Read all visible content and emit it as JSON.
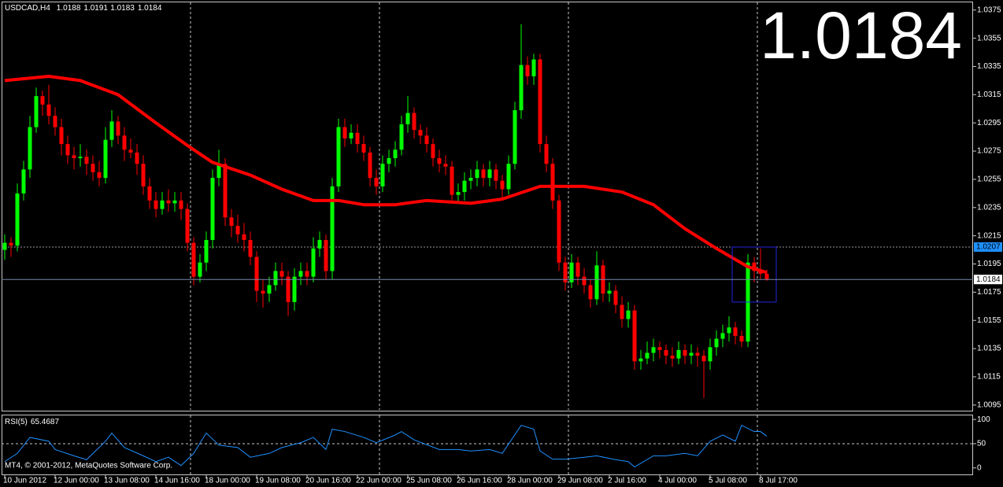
{
  "header": {
    "symbol": "USDCAD,H4"
  },
  "footer": "MT4, © 2001-2012, MetaQuotes Software Corp.",
  "chart_data": [
    {
      "type": "candlestick",
      "categories": [
        "10 Jun 2012",
        null,
        null,
        null,
        null,
        null,
        null,
        null,
        "12 Jun 00:00",
        null,
        null,
        null,
        null,
        null,
        null,
        null,
        "13 Jun 08:00",
        null,
        null,
        null,
        null,
        null,
        null,
        null,
        "14 Jun 16:00",
        null,
        null,
        null,
        null,
        null,
        null,
        null,
        "18 Jun 00:00",
        null,
        null,
        null,
        null,
        null,
        null,
        null,
        "19 Jun 08:00",
        null,
        null,
        null,
        null,
        null,
        null,
        null,
        "20 Jun 16:00",
        null,
        null,
        null,
        null,
        null,
        null,
        null,
        "22 Jun 00:00",
        null,
        null,
        null,
        null,
        null,
        null,
        null,
        "25 Jun 08:00",
        null,
        null,
        null,
        null,
        null,
        null,
        null,
        "26 Jun 16:00",
        null,
        null,
        null,
        null,
        null,
        null,
        null,
        "28 Jun 00:00",
        null,
        null,
        null,
        null,
        null,
        null,
        null,
        "29 Jun 08:00",
        null,
        null,
        null,
        null,
        null,
        null,
        null,
        "2 Jul 16:00",
        null,
        null,
        null,
        null,
        null,
        null,
        null,
        "4 Jul 00:00",
        null,
        null,
        null,
        null,
        null,
        null,
        null,
        "5 Jul 08:00",
        null,
        null,
        null,
        null,
        null,
        null,
        null,
        "8 Jul 17:00",
        null
      ],
      "ohlc": [
        [
          1.0205,
          1.0216,
          1.0198,
          1.021
        ],
        [
          1.021,
          1.0214,
          1.02,
          1.0208
        ],
        [
          1.0208,
          1.0252,
          1.0204,
          1.0245
        ],
        [
          1.0245,
          1.0268,
          1.024,
          1.0262
        ],
        [
          1.0262,
          1.03,
          1.0256,
          1.0292
        ],
        [
          1.0292,
          1.032,
          1.0288,
          1.0314
        ],
        [
          1.0314,
          1.0318,
          1.03,
          1.0308
        ],
        [
          1.0308,
          1.0322,
          1.0294,
          1.03
        ],
        [
          1.03,
          1.0306,
          1.0286,
          1.0292
        ],
        [
          1.0292,
          1.0298,
          1.0272,
          1.028
        ],
        [
          1.028,
          1.0286,
          1.0266,
          1.0272
        ],
        [
          1.0272,
          1.0278,
          1.0262,
          1.027
        ],
        [
          1.027,
          1.028,
          1.0264,
          1.0271
        ],
        [
          1.0271,
          1.0276,
          1.0258,
          1.0266
        ],
        [
          1.0266,
          1.0272,
          1.0254,
          1.026
        ],
        [
          1.026,
          1.0268,
          1.025,
          1.0256
        ],
        [
          1.0256,
          1.0292,
          1.0252,
          1.0283
        ],
        [
          1.0283,
          1.0304,
          1.0278,
          1.0296
        ],
        [
          1.0296,
          1.03,
          1.028,
          1.0286
        ],
        [
          1.0286,
          1.0292,
          1.0268,
          1.0276
        ],
        [
          1.0276,
          1.0284,
          1.027,
          1.0274
        ],
        [
          1.0274,
          1.028,
          1.0258,
          1.0266
        ],
        [
          1.0266,
          1.0272,
          1.0244,
          1.025
        ],
        [
          1.025,
          1.0256,
          1.0234,
          1.024
        ],
        [
          1.024,
          1.0246,
          1.0228,
          1.0234
        ],
        [
          1.0234,
          1.0246,
          1.023,
          1.024
        ],
        [
          1.024,
          1.0248,
          1.0232,
          1.0238
        ],
        [
          1.0238,
          1.0246,
          1.0232,
          1.024
        ],
        [
          1.024,
          1.0246,
          1.0226,
          1.0234
        ],
        [
          1.0234,
          1.0238,
          1.0204,
          1.021
        ],
        [
          1.021,
          1.0214,
          1.018,
          1.0186
        ],
        [
          1.0186,
          1.0202,
          1.0182,
          1.0196
        ],
        [
          1.0196,
          1.0218,
          1.019,
          1.0212
        ],
        [
          1.0212,
          1.0262,
          1.0206,
          1.0256
        ],
        [
          1.0256,
          1.0276,
          1.025,
          1.0266
        ],
        [
          1.0266,
          1.027,
          1.0222,
          1.0228
        ],
        [
          1.0228,
          1.0234,
          1.0214,
          1.0222
        ],
        [
          1.0222,
          1.023,
          1.021,
          1.0216
        ],
        [
          1.0216,
          1.0224,
          1.0204,
          1.0212
        ],
        [
          1.0212,
          1.0218,
          1.0194,
          1.02
        ],
        [
          1.02,
          1.0204,
          1.0168,
          1.0176
        ],
        [
          1.0176,
          1.0184,
          1.0164,
          1.0174
        ],
        [
          1.0174,
          1.0186,
          1.0168,
          1.018
        ],
        [
          1.018,
          1.0196,
          1.0176,
          1.019
        ],
        [
          1.019,
          1.0196,
          1.018,
          1.0186
        ],
        [
          1.0186,
          1.019,
          1.0158,
          1.0168
        ],
        [
          1.0168,
          1.0192,
          1.0162,
          1.0186
        ],
        [
          1.0186,
          1.0196,
          1.018,
          1.019
        ],
        [
          1.019,
          1.0196,
          1.018,
          1.0186
        ],
        [
          1.0186,
          1.0214,
          1.0182,
          1.0206
        ],
        [
          1.0206,
          1.0218,
          1.02,
          1.0212
        ],
        [
          1.0212,
          1.0216,
          1.0184,
          1.019
        ],
        [
          1.019,
          1.0256,
          1.0184,
          1.025
        ],
        [
          1.025,
          1.0298,
          1.0246,
          1.0292
        ],
        [
          1.0292,
          1.0298,
          1.0278,
          1.0284
        ],
        [
          1.0284,
          1.0294,
          1.028,
          1.0288
        ],
        [
          1.0288,
          1.0294,
          1.0274,
          1.028
        ],
        [
          1.028,
          1.0286,
          1.0268,
          1.0274
        ],
        [
          1.0274,
          1.0278,
          1.025,
          1.0256
        ],
        [
          1.0256,
          1.0262,
          1.0244,
          1.025
        ],
        [
          1.025,
          1.0272,
          1.0246,
          1.0266
        ],
        [
          1.0266,
          1.0276,
          1.026,
          1.027
        ],
        [
          1.027,
          1.0282,
          1.0264,
          1.0276
        ],
        [
          1.0276,
          1.03,
          1.0272,
          1.0294
        ],
        [
          1.0294,
          1.0314,
          1.0288,
          1.0302
        ],
        [
          1.0302,
          1.0306,
          1.0284,
          1.029
        ],
        [
          1.029,
          1.0294,
          1.028,
          1.0286
        ],
        [
          1.0286,
          1.0292,
          1.0274,
          1.028
        ],
        [
          1.028,
          1.0284,
          1.0264,
          1.027
        ],
        [
          1.027,
          1.0276,
          1.026,
          1.0266
        ],
        [
          1.0266,
          1.0272,
          1.0258,
          1.0264
        ],
        [
          1.0264,
          1.0268,
          1.0238,
          1.0244
        ],
        [
          1.0244,
          1.0252,
          1.0238,
          1.0246
        ],
        [
          1.0246,
          1.026,
          1.024,
          1.0254
        ],
        [
          1.0254,
          1.0262,
          1.0248,
          1.0256
        ],
        [
          1.0256,
          1.0268,
          1.025,
          1.0262
        ],
        [
          1.0262,
          1.0266,
          1.025,
          1.0256
        ],
        [
          1.0256,
          1.0268,
          1.025,
          1.0262
        ],
        [
          1.0262,
          1.0266,
          1.0248,
          1.0254
        ],
        [
          1.0254,
          1.0258,
          1.0242,
          1.0248
        ],
        [
          1.0248,
          1.0272,
          1.0244,
          1.0266
        ],
        [
          1.0266,
          1.031,
          1.0262,
          1.0304
        ],
        [
          1.0304,
          1.0365,
          1.0298,
          1.0336
        ],
        [
          1.0336,
          1.0342,
          1.0322,
          1.0328
        ],
        [
          1.0328,
          1.0344,
          1.0322,
          1.034
        ],
        [
          1.034,
          1.0344,
          1.0274,
          1.028
        ],
        [
          1.028,
          1.0286,
          1.026,
          1.0266
        ],
        [
          1.0266,
          1.027,
          1.0234,
          1.024
        ],
        [
          1.024,
          1.0244,
          1.019,
          1.0196
        ],
        [
          1.0196,
          1.02,
          1.0176,
          1.0182
        ],
        [
          1.0182,
          1.0202,
          1.0178,
          1.0196
        ],
        [
          1.0196,
          1.02,
          1.018,
          1.0186
        ],
        [
          1.0186,
          1.0192,
          1.0174,
          1.018
        ],
        [
          1.018,
          1.0184,
          1.0164,
          1.017
        ],
        [
          1.017,
          1.0204,
          1.0166,
          1.0194
        ],
        [
          1.0194,
          1.0198,
          1.0168,
          1.0174
        ],
        [
          1.0174,
          1.0182,
          1.0168,
          1.0176
        ],
        [
          1.0176,
          1.018,
          1.016,
          1.0166
        ],
        [
          1.0166,
          1.0172,
          1.015,
          1.0156
        ],
        [
          1.0156,
          1.0168,
          1.015,
          1.0162
        ],
        [
          1.0162,
          1.0166,
          1.012,
          1.0126
        ],
        [
          1.0126,
          1.0134,
          1.012,
          1.0128
        ],
        [
          1.0128,
          1.014,
          1.0124,
          1.0132
        ],
        [
          1.0132,
          1.0142,
          1.0126,
          1.0136
        ],
        [
          1.0136,
          1.014,
          1.0128,
          1.0134
        ],
        [
          1.0134,
          1.0138,
          1.0124,
          1.013
        ],
        [
          1.013,
          1.0136,
          1.0122,
          1.0128
        ],
        [
          1.0128,
          1.014,
          1.0124,
          1.0134
        ],
        [
          1.0134,
          1.0138,
          1.0124,
          1.013
        ],
        [
          1.013,
          1.0138,
          1.0124,
          1.0132
        ],
        [
          1.0132,
          1.0136,
          1.0122,
          1.013
        ],
        [
          1.013,
          1.0134,
          1.01,
          1.0126
        ],
        [
          1.0126,
          1.0142,
          1.012,
          1.0136
        ],
        [
          1.0136,
          1.0148,
          1.013,
          1.0142
        ],
        [
          1.0142,
          1.0152,
          1.0136,
          1.0146
        ],
        [
          1.0146,
          1.0158,
          1.014,
          1.015
        ],
        [
          1.015,
          1.0154,
          1.0138,
          1.0144
        ],
        [
          1.0144,
          1.0148,
          1.0136,
          1.014
        ],
        [
          1.014,
          1.0202,
          1.0136,
          1.0196
        ],
        [
          1.0196,
          1.02,
          1.0182,
          1.019
        ],
        [
          1.019,
          1.0206,
          1.0184,
          1.0188
        ],
        [
          1.0188,
          1.0191,
          1.0183,
          1.0184
        ]
      ],
      "up_color": "#00ff00",
      "down_color": "#ff0000",
      "ylim": [
        1.0091,
        1.0381
      ],
      "yticks": [
        1.0375,
        1.0355,
        1.0335,
        1.0315,
        1.0295,
        1.0275,
        1.0255,
        1.0235,
        1.0215,
        1.0195,
        1.0175,
        1.0155,
        1.0135,
        1.0115,
        1.0095
      ],
      "ma": {
        "color": "#ff0000",
        "x": [
          0,
          7,
          12,
          18,
          24,
          29,
          33,
          39,
          44,
          49,
          53,
          57,
          62,
          67,
          74,
          79,
          85,
          92,
          98,
          103,
          108,
          113,
          118,
          121
        ],
        "values": [
          1.0325,
          1.0328,
          1.0325,
          1.0315,
          1.0295,
          1.0279,
          1.0267,
          1.0258,
          1.0248,
          1.024,
          1.024,
          1.0237,
          1.0237,
          1.024,
          1.0238,
          1.0241,
          1.025,
          1.025,
          1.0246,
          1.0237,
          1.022,
          1.0206,
          1.0193,
          1.0189
        ]
      },
      "vgrid": [
        29.5,
        59.5,
        89.5,
        119.5
      ],
      "level_lines": [
        1.0207
      ],
      "highlight_box": {
        "x": [
          115.5,
          122.5
        ],
        "values": [
          1.0207,
          1.0168
        ],
        "color": "#2424e0"
      }
    },
    {
      "type": "line",
      "name": "RSI(5)",
      "color": "#1e90ff",
      "x": [
        0,
        2,
        4,
        7,
        8,
        11,
        13,
        16,
        17,
        19,
        22,
        24,
        26,
        28,
        30,
        32,
        34,
        37,
        39,
        42,
        44,
        47,
        49,
        51,
        52,
        54,
        57,
        59,
        62,
        63,
        65,
        69,
        72,
        74,
        77,
        79,
        82,
        84,
        85,
        87,
        89,
        92,
        94,
        97,
        99,
        100,
        103,
        105,
        108,
        110,
        112,
        114,
        116,
        117,
        119,
        120,
        121
      ],
      "values": [
        13,
        30,
        63,
        55,
        38,
        25,
        17,
        55,
        72,
        42,
        25,
        13,
        22,
        5,
        30,
        72,
        47,
        42,
        22,
        30,
        42,
        52,
        63,
        38,
        80,
        75,
        63,
        52,
        68,
        75,
        58,
        38,
        38,
        35,
        38,
        30,
        88,
        80,
        35,
        18,
        18,
        22,
        25,
        17,
        13,
        2,
        25,
        25,
        30,
        25,
        55,
        68,
        55,
        88,
        75,
        75,
        65.4687
      ],
      "ylim": [
        -15,
        110
      ],
      "yticks": [
        100,
        50,
        0
      ],
      "levels": [
        50
      ]
    }
  ]
}
